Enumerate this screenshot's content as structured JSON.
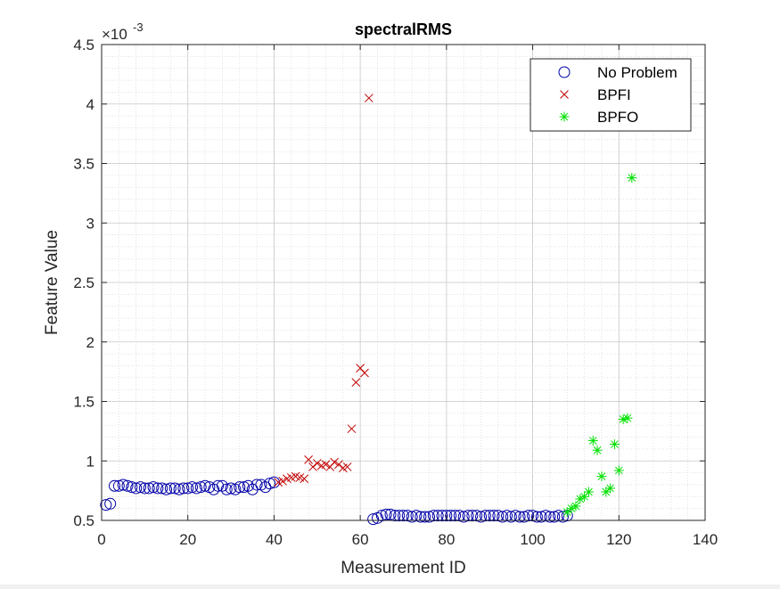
{
  "chart_data": {
    "type": "scatter",
    "title": "spectralRMS",
    "xlabel": "Measurement ID",
    "ylabel": "Feature Value",
    "exponent_label": "×10",
    "exponent_value": "-3",
    "xlim": [
      0,
      140
    ],
    "ylim": [
      0.5,
      4.5
    ],
    "y_scale_factor": 0.001,
    "x_ticks": [
      0,
      20,
      40,
      60,
      80,
      100,
      120,
      140
    ],
    "y_ticks": [
      0.5,
      1,
      1.5,
      2,
      2.5,
      3,
      3.5,
      4,
      4.5
    ],
    "x_tick_labels": [
      "0",
      "20",
      "40",
      "60",
      "80",
      "100",
      "120",
      "140"
    ],
    "y_tick_labels": [
      "0.5",
      "1",
      "1.5",
      "2",
      "2.5",
      "3",
      "3.5",
      "4",
      "4.5"
    ],
    "grid": true,
    "minor_grid": true,
    "legend_position": "top-right",
    "series": [
      {
        "name": "No Problem",
        "marker": "circle",
        "color": "#0000a8",
        "x": [
          1,
          2,
          3,
          4,
          5,
          6,
          7,
          8,
          9,
          10,
          11,
          12,
          13,
          14,
          15,
          16,
          17,
          18,
          19,
          20,
          21,
          22,
          23,
          24,
          25,
          26,
          27,
          28,
          29,
          30,
          31,
          32,
          33,
          34,
          35,
          36,
          37,
          38,
          39,
          40,
          63,
          64,
          65,
          66,
          67,
          68,
          69,
          70,
          71,
          72,
          73,
          74,
          75,
          76,
          77,
          78,
          79,
          80,
          81,
          82,
          83,
          84,
          85,
          86,
          87,
          88,
          89,
          90,
          91,
          92,
          93,
          94,
          95,
          96,
          97,
          98,
          99,
          100,
          101,
          102,
          103,
          104,
          105,
          106,
          107,
          108
        ],
        "y": [
          0.63,
          0.64,
          0.79,
          0.79,
          0.8,
          0.79,
          0.78,
          0.77,
          0.78,
          0.77,
          0.77,
          0.78,
          0.77,
          0.77,
          0.76,
          0.77,
          0.77,
          0.76,
          0.77,
          0.77,
          0.78,
          0.77,
          0.78,
          0.79,
          0.78,
          0.76,
          0.79,
          0.79,
          0.76,
          0.77,
          0.76,
          0.78,
          0.78,
          0.79,
          0.76,
          0.8,
          0.8,
          0.78,
          0.81,
          0.82,
          0.51,
          0.52,
          0.54,
          0.55,
          0.55,
          0.54,
          0.54,
          0.54,
          0.54,
          0.53,
          0.54,
          0.53,
          0.53,
          0.53,
          0.54,
          0.54,
          0.54,
          0.54,
          0.54,
          0.54,
          0.54,
          0.53,
          0.54,
          0.54,
          0.54,
          0.53,
          0.54,
          0.54,
          0.54,
          0.54,
          0.53,
          0.54,
          0.53,
          0.54,
          0.53,
          0.53,
          0.54,
          0.54,
          0.53,
          0.53,
          0.54,
          0.53,
          0.53,
          0.54,
          0.53,
          0.54
        ]
      },
      {
        "name": "BPFI",
        "marker": "x",
        "color": "#c00000",
        "x": [
          41,
          42,
          43,
          44,
          45,
          46,
          47,
          48,
          49,
          50,
          51,
          52,
          53,
          54,
          55,
          56,
          57,
          58,
          59,
          60,
          61,
          62
        ],
        "y": [
          0.82,
          0.83,
          0.85,
          0.86,
          0.87,
          0.86,
          0.85,
          1.01,
          0.95,
          0.98,
          0.96,
          0.97,
          0.95,
          0.99,
          0.97,
          0.94,
          0.95,
          1.27,
          1.66,
          1.78,
          1.74,
          4.05
        ]
      },
      {
        "name": "BPFO",
        "marker": "asterisk",
        "color": "#00e000",
        "x": [
          108,
          109,
          110,
          111,
          112,
          113,
          114,
          115,
          116,
          117,
          118,
          119,
          120,
          121,
          122,
          123
        ],
        "y": [
          0.57,
          0.6,
          0.62,
          0.68,
          0.7,
          0.74,
          1.17,
          1.09,
          0.87,
          0.74,
          0.77,
          1.14,
          0.92,
          1.35,
          1.36,
          3.38
        ]
      }
    ]
  }
}
